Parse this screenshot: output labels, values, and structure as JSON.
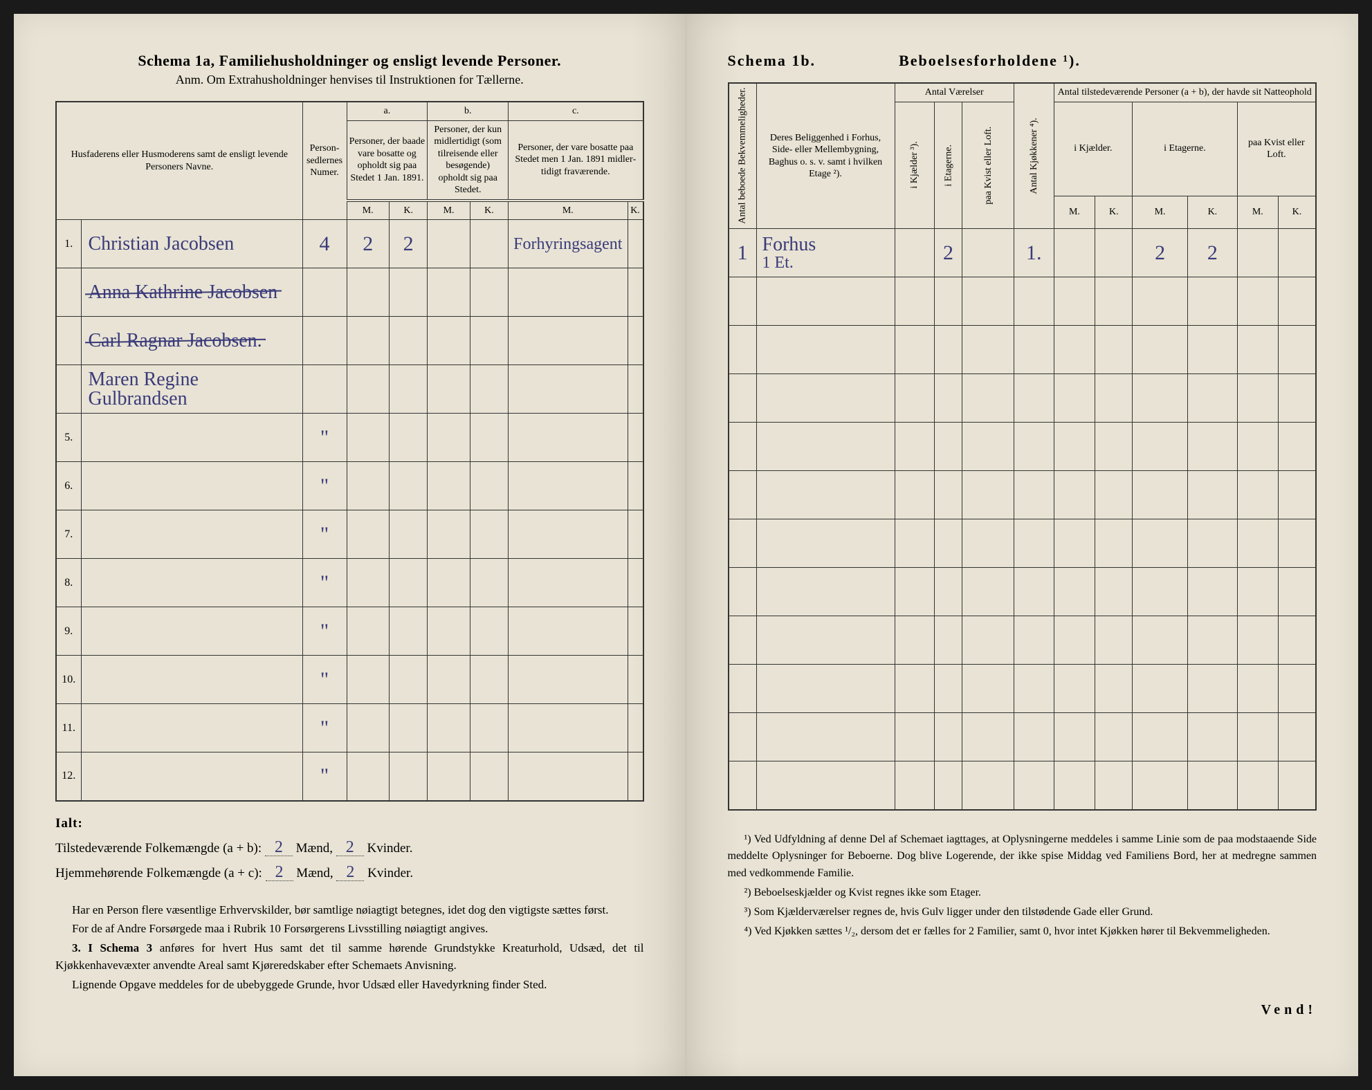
{
  "left": {
    "title_main": "Schema 1a,   Familiehusholdninger og ensligt levende Personer.",
    "title_sub": "Anm.  Om Extrahusholdninger henvises til Instruktionen for Tællerne.",
    "col_names": "Husfaderens eller Husmode­rens samt de ensligt levende Personers Navne.",
    "col_personsedler": "Person­sedler­nes Numer.",
    "col_a_label": "a.",
    "col_a_text": "Personer, der baade vare bo­satte og opholdt sig paa Stedet 1 Jan. 1891.",
    "col_b_label": "b.",
    "col_b_text": "Personer, der kun midler­tidigt (som tilreisende eller besøgende) opholdt sig paa Stedet.",
    "col_c_label": "c.",
    "col_c_text": "Personer, der vare bosatte paa Stedet men 1 Jan. 1891 midler­tidigt fra­værende.",
    "mk_m": "M.",
    "mk_k": "K.",
    "rows": [
      {
        "n": "1.",
        "name": "Christian Jacobsen",
        "ps": "4",
        "am": "2",
        "ak": "2",
        "note": "Forhyringsagent"
      },
      {
        "n": "",
        "name": "Anna Kathrine Jacobsen",
        "ps": "",
        "am": "",
        "ak": "",
        "strike": true
      },
      {
        "n": "",
        "name": "Carl Ragnar Jacobsen.",
        "ps": "",
        "am": "",
        "ak": "",
        "strike": true
      },
      {
        "n": "",
        "name": "Maren Regine Gulbrandsen",
        "ps": "",
        "am": "",
        "ak": ""
      },
      {
        "n": "5.",
        "name": "",
        "ps": "\"",
        "am": "",
        "ak": ""
      },
      {
        "n": "6.",
        "name": "",
        "ps": "\"",
        "am": "",
        "ak": ""
      },
      {
        "n": "7.",
        "name": "",
        "ps": "\"",
        "am": "",
        "ak": ""
      },
      {
        "n": "8.",
        "name": "",
        "ps": "\"",
        "am": "",
        "ak": ""
      },
      {
        "n": "9.",
        "name": "",
        "ps": "\"",
        "am": "",
        "ak": ""
      },
      {
        "n": "10.",
        "name": "",
        "ps": "\"",
        "am": "",
        "ak": ""
      },
      {
        "n": "11.",
        "name": "",
        "ps": "\"",
        "am": "",
        "ak": ""
      },
      {
        "n": "12.",
        "name": "",
        "ps": "\"",
        "am": "",
        "ak": ""
      }
    ],
    "ialt": "Ialt:",
    "tot1_label": "Tilstedeværende Folkemængde (a + b): ",
    "tot2_label": "Hjemmehørende Folkemængde (a + c): ",
    "tot_m": "2",
    "tot_k": "2",
    "maend": " Mænd, ",
    "kvinder": " Kvinder.",
    "para1": "Har en Person flere væsentlige Erhvervskilder, bør samtlige nøiagtigt betegnes, idet dog den vigtigste sættes først.",
    "para2": "For de af Andre Forsørgede maa i Rubrik 10 Forsørgerens Livsstilling nøiagtigt angives.",
    "para3_lead": "3. I Schema 3",
    "para3": " anføres for hvert Hus samt det til samme hørende Grund­stykke Kreaturhold, Udsæd, det til Kjøkkenhavevæxter anvendte Areal samt Kjøreredskaber efter Schemaets Anvisning.",
    "para4": "Lignende Opgave meddeles for de ubebyggede Grunde, hvor Udsæd eller Havedyrkning finder Sted."
  },
  "right": {
    "schema_label": "Schema 1b.",
    "schema_desc": "Beboelsesforholdene ¹).",
    "col_antal_bekv": "Antal beboede Bekvemmeligheder.",
    "col_beliggenhed": "Deres Beliggenhed i Forhus, Side- eller Mellembygning, Baghus o. s. v. samt i hvilken Etage ²).",
    "col_antal_vaer": "Antal Værelser",
    "col_ikjaelder": "i Kjælder ³).",
    "col_ietagerne": "i Etagerne.",
    "col_paakvist": "paa Kvist eller Loft.",
    "col_antal_kjok": "Antal Kjøkkener ⁴).",
    "col_tilstede": "Antal tilstedeværende Personer (a + b), der havde sit Natteophold",
    "col_ikjael": "i Kjæl­der.",
    "col_iet": "i Etagerne.",
    "col_paak": "paa Kvist eller Loft.",
    "mk_m": "M.",
    "mk_k": "K.",
    "rows": [
      {
        "bekv": "1",
        "bel": "Forhus",
        "bel2": "1 Et.",
        "ietag": "2",
        "kjok": "1.",
        "em": "2",
        "ek": "2"
      },
      {},
      {},
      {},
      {},
      {},
      {},
      {},
      {},
      {},
      {},
      {}
    ],
    "fn1": "¹) Ved Udfyldning af denne Del af Schemaet iagttages, at Oplysningerne meddeles i samme Linie som de paa modstaaende Side meddelte Oplysninger for Beboerne. Dog blive Logerende, der ikke spise Middag ved Familiens Bord, her at medregne sammen med vedkommende Familie.",
    "fn2": "²) Beboelseskjælder og Kvist regnes ikke som Etager.",
    "fn3": "³) Som Kjælderværelser regnes de, hvis Gulv ligger under den tilstødende Gade eller Grund.",
    "fn4": "⁴) Ved Kjøkken sættes ¹/₂, dersom det er fælles for 2 Familier, samt 0, hvor intet Kjøkken hører til Bekvemmeligheden.",
    "vend": "Vend!"
  }
}
